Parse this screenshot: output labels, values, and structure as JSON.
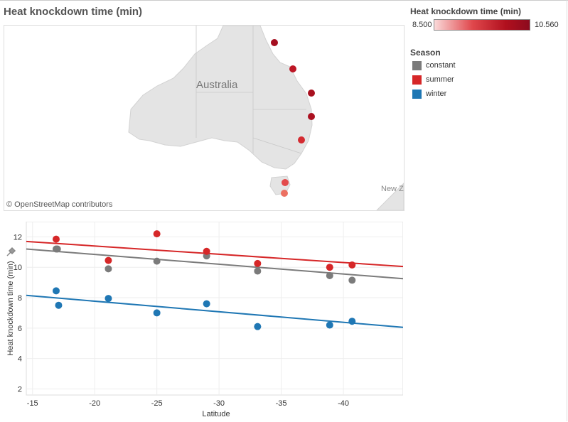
{
  "title": "Heat knockdown time (min)",
  "map": {
    "country_label": "Australia",
    "attribution": "© OpenStreetMap contributors",
    "nz_label": "New Z",
    "points": [
      {
        "value": 10.56,
        "color": "#a50f20"
      },
      {
        "value": 10.3,
        "color": "#bd1625"
      },
      {
        "value": 10.5,
        "color": "#a8101f"
      },
      {
        "value": 10.45,
        "color": "#ab1020"
      },
      {
        "value": 9.9,
        "color": "#d42b31"
      },
      {
        "value": 9.6,
        "color": "#e34a4b"
      },
      {
        "value": 9.2,
        "color": "#ec7062"
      }
    ]
  },
  "legend": {
    "color_title": "Heat knockdown time (min)",
    "min_label": "8.500",
    "max_label": "10.560",
    "season_title": "Season",
    "items": [
      {
        "label": "constant",
        "color": "#7b7b7b"
      },
      {
        "label": "summer",
        "color": "#d62728"
      },
      {
        "label": "winter",
        "color": "#1f77b4"
      }
    ]
  },
  "chart_data": {
    "type": "scatter",
    "xlabel": "Latitude",
    "ylabel": "Heat knockdown time (min)",
    "xlim": [
      -14.5,
      -44.8
    ],
    "ylim": [
      1.6,
      13.0
    ],
    "x_ticks": [
      "-15",
      "-20",
      "-25",
      "-30",
      "-35",
      "-40"
    ],
    "x_tick_values": [
      -15,
      -20,
      -25,
      -30,
      -35,
      -40
    ],
    "y_ticks": [
      "2",
      "4",
      "6",
      "8",
      "10",
      "12"
    ],
    "y_tick_values": [
      2,
      4,
      6,
      8,
      10,
      12
    ],
    "grid": true,
    "series": [
      {
        "name": "constant",
        "color": "#7b7b7b",
        "points": [
          [
            -16.9,
            11.2
          ],
          [
            -17.0,
            11.2
          ],
          [
            -21.1,
            9.9
          ],
          [
            -25.0,
            10.4
          ],
          [
            -29.0,
            10.75
          ],
          [
            -33.1,
            9.75
          ],
          [
            -38.9,
            9.45
          ],
          [
            -40.7,
            9.15
          ]
        ],
        "trend": [
          [
            -14.5,
            11.2
          ],
          [
            -44.8,
            9.25
          ]
        ]
      },
      {
        "name": "summer",
        "color": "#d62728",
        "points": [
          [
            -16.9,
            11.85
          ],
          [
            -21.1,
            10.45
          ],
          [
            -25.0,
            12.2
          ],
          [
            -29.0,
            11.05
          ],
          [
            -33.1,
            10.25
          ],
          [
            -38.9,
            10.0
          ],
          [
            -40.7,
            10.15
          ]
        ],
        "trend": [
          [
            -14.5,
            11.7
          ],
          [
            -44.8,
            10.05
          ]
        ]
      },
      {
        "name": "winter",
        "color": "#1f77b4",
        "points": [
          [
            -16.9,
            8.45
          ],
          [
            -17.1,
            7.5
          ],
          [
            -21.1,
            7.95
          ],
          [
            -25.0,
            7.0
          ],
          [
            -29.0,
            7.6
          ],
          [
            -33.1,
            6.1
          ],
          [
            -38.9,
            6.2
          ],
          [
            -40.7,
            6.45
          ]
        ],
        "trend": [
          [
            -14.5,
            8.15
          ],
          [
            -44.8,
            6.05
          ]
        ]
      }
    ]
  }
}
